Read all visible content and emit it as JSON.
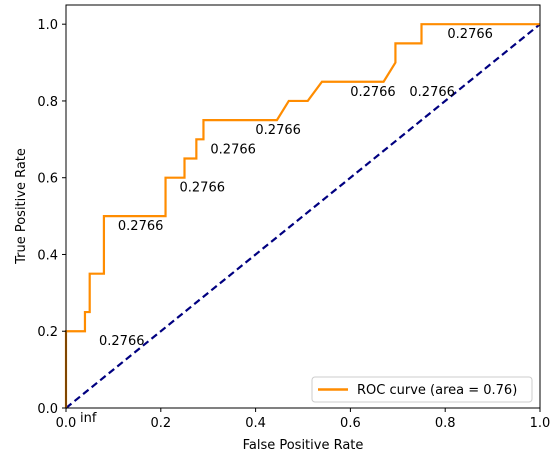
{
  "chart_data": {
    "type": "line",
    "xlabel": "False Positive Rate",
    "ylabel": "True Positive Rate",
    "xlim": [
      0.0,
      1.0
    ],
    "ylim": [
      0.0,
      1.05
    ],
    "xticks": [
      0.0,
      0.2,
      0.4,
      0.6,
      0.8,
      1.0
    ],
    "xtick_labels": [
      "0.0",
      "0.2",
      "0.4",
      "0.6",
      "0.8",
      "1.0"
    ],
    "yticks": [
      0.0,
      0.2,
      0.4,
      0.6,
      0.8,
      1.0
    ],
    "ytick_labels": [
      "0.0",
      "0.2",
      "0.4",
      "0.6",
      "0.8",
      "1.0"
    ],
    "grid": false,
    "legend": {
      "position": "lower-right",
      "entries": [
        "ROC curve (area = 0.76)"
      ]
    },
    "series": [
      {
        "name": "ROC curve (area = 0.76)",
        "color": "#ff8c00",
        "style": "solid",
        "x": [
          0.0,
          0.0,
          0.0,
          0.04,
          0.04,
          0.05,
          0.05,
          0.08,
          0.08,
          0.21,
          0.21,
          0.25,
          0.25,
          0.275,
          0.275,
          0.29,
          0.29,
          0.445,
          0.47,
          0.51,
          0.54,
          0.67,
          0.695,
          0.695,
          0.75,
          0.75,
          1.0
        ],
        "y": [
          0.0,
          0.0,
          0.2,
          0.2,
          0.25,
          0.25,
          0.35,
          0.35,
          0.5,
          0.5,
          0.6,
          0.6,
          0.65,
          0.65,
          0.7,
          0.7,
          0.75,
          0.75,
          0.8,
          0.8,
          0.85,
          0.85,
          0.9,
          0.95,
          0.95,
          1.0,
          1.0
        ]
      },
      {
        "name": "",
        "color": "#000080",
        "style": "dashed",
        "x": [
          0.0,
          1.0
        ],
        "y": [
          0.0,
          1.0
        ]
      }
    ],
    "annotations": [
      {
        "text": "inf",
        "x": 0.0,
        "y": 0.0
      },
      {
        "text": "0.2766",
        "x": 0.04,
        "y": 0.2
      },
      {
        "text": "0.2766",
        "x": 0.08,
        "y": 0.5
      },
      {
        "text": "0.2766",
        "x": 0.21,
        "y": 0.6
      },
      {
        "text": "0.2766",
        "x": 0.275,
        "y": 0.7
      },
      {
        "text": "0.2766",
        "x": 0.37,
        "y": 0.75
      },
      {
        "text": "0.2766",
        "x": 0.57,
        "y": 0.85
      },
      {
        "text": "0.2766",
        "x": 0.695,
        "y": 0.85
      },
      {
        "text": "0.2766",
        "x": 0.775,
        "y": 1.0
      }
    ]
  }
}
